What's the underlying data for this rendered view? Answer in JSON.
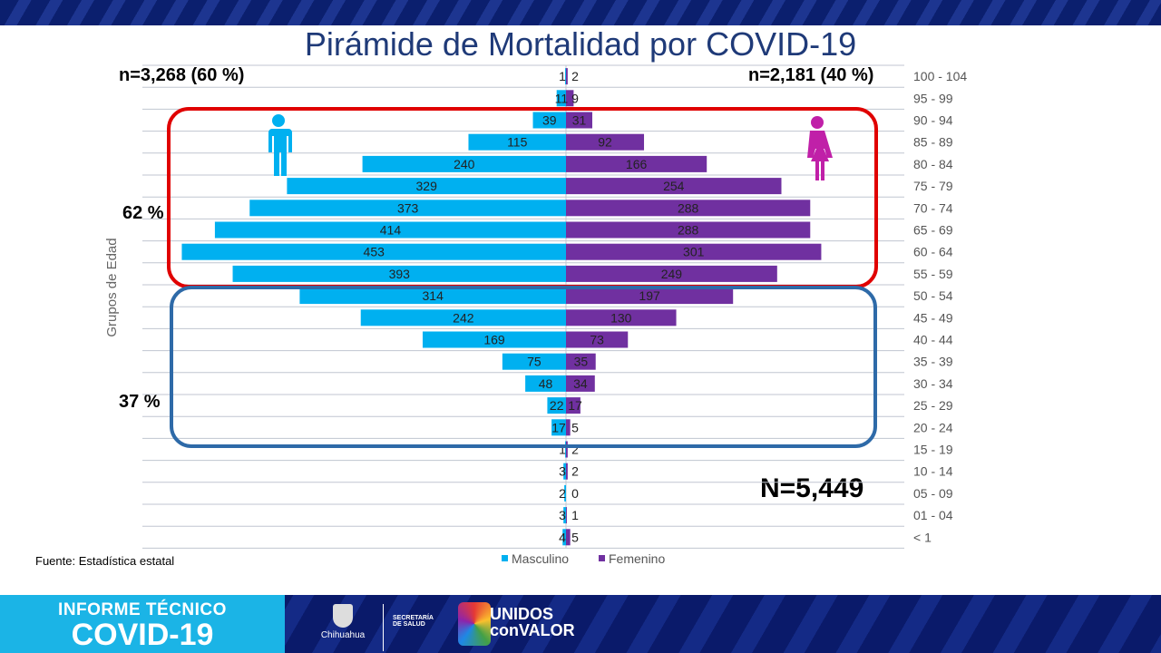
{
  "title": "Pirámide de Mortalidad por COVID-19",
  "chart_data": {
    "type": "bar",
    "orientation": "horizontal-pyramid",
    "ylabel": "Grupos de Edad",
    "categories": [
      "100 - 104",
      "95 - 99",
      "90 - 94",
      "85 - 89",
      "80 - 84",
      "75 - 79",
      "70 - 74",
      "65 - 69",
      "60 - 64",
      "55 - 59",
      "50 - 54",
      "45 - 49",
      "40 - 44",
      "35 - 39",
      "30 - 34",
      "25 - 29",
      "20 - 24",
      "15 - 19",
      "10 - 14",
      "05 - 09",
      "01 - 04",
      "< 1"
    ],
    "series": [
      {
        "name": "Masculino",
        "color": "#00b0f0",
        "values": [
          1,
          11,
          39,
          115,
          240,
          329,
          373,
          414,
          453,
          393,
          314,
          242,
          169,
          75,
          48,
          22,
          17,
          1,
          3,
          2,
          3,
          4
        ]
      },
      {
        "name": "Femenino",
        "color": "#7030a0",
        "values": [
          2,
          9,
          31,
          92,
          166,
          254,
          288,
          288,
          301,
          249,
          197,
          130,
          73,
          35,
          34,
          17,
          5,
          2,
          2,
          0,
          1,
          5
        ]
      }
    ],
    "legend": "bottom",
    "grid": true
  },
  "annotations": {
    "male_total": "n=3,268 (60 %)",
    "female_total": "n=2,181 (40 %)",
    "pct_upper": "62 %",
    "pct_lower": "37 %",
    "grand_total": "N=5,449",
    "upper_box_color": "#e00000",
    "lower_box_color": "#2e6aa8"
  },
  "source": "Fuente: Estadística estatal",
  "footer": {
    "line1": "INFORME TÉCNICO",
    "line2": "COVID-19",
    "gov": "Chihuahua",
    "secretaria": "SECRETARÍA",
    "salud": "DE SALUD",
    "unidos": "UNIDOS",
    "valor": "conVALOR"
  }
}
